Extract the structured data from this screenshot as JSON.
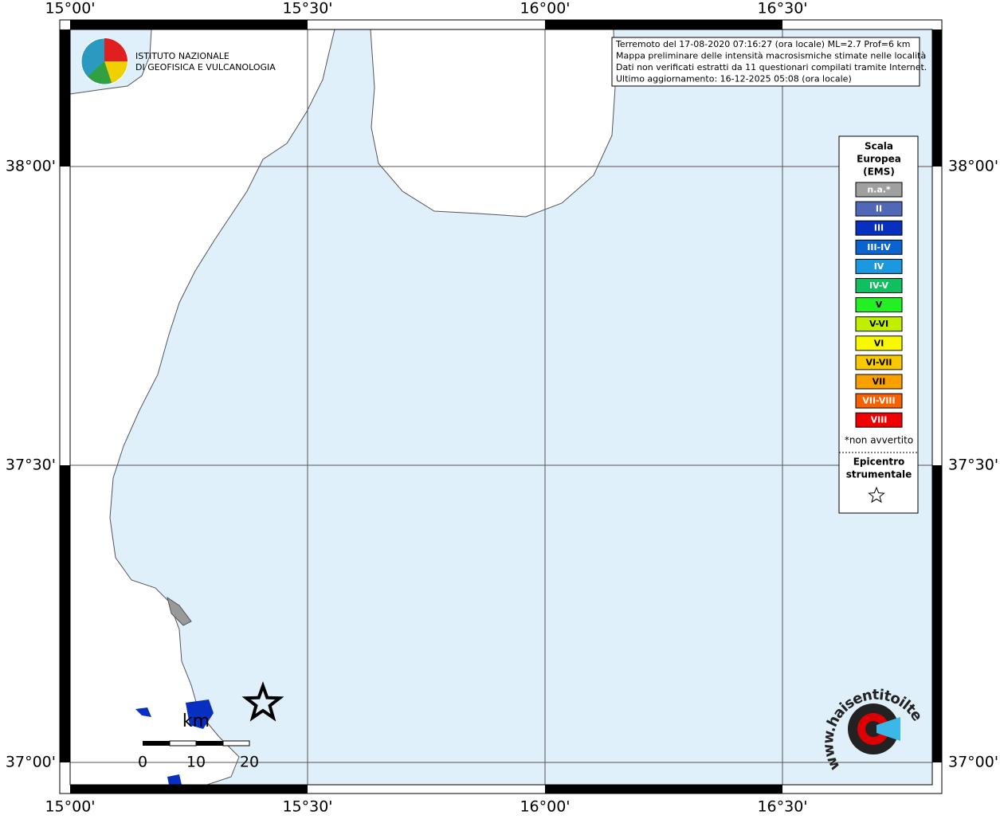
{
  "axis_labels": {
    "top": [
      "15°00'",
      "15°30'",
      "16°00'",
      "16°30'"
    ],
    "bottom": [
      "15°00'",
      "15°30'",
      "16°00'",
      "16°30'"
    ],
    "left": [
      "38°00'",
      "37°30'",
      "37°00'"
    ],
    "right": [
      "38°00'",
      "37°30'",
      "37°00'"
    ]
  },
  "logo": {
    "line1": "ISTITUTO NAZIONALE",
    "line2": "DI GEOFISICA E VULCANOLOGIA"
  },
  "info": {
    "lines": [
      "Terremoto del 17-08-2020 07:16:27 (ora locale) ML=2.7 Prof=6 km",
      "Mappa preliminare delle intensità macrosismiche stimate nelle località",
      "Dati non verificati estratti da 11 questionari compilati tramite Internet.",
      "Ultimo aggiornamento: 16-12-2025 05:08 (ora locale)"
    ]
  },
  "legend": {
    "title": [
      "Scala",
      "Europea",
      "(EMS)"
    ],
    "items": [
      {
        "label": "n.a.*",
        "color": "#a0a0a0"
      },
      {
        "label": "II",
        "color": "#5068b8"
      },
      {
        "label": "III",
        "color": "#0830c0"
      },
      {
        "label": "III-IV",
        "color": "#0a64d0"
      },
      {
        "label": "IV",
        "color": "#1a98e0"
      },
      {
        "label": "IV-V",
        "color": "#10c060"
      },
      {
        "label": "V",
        "color": "#22f022"
      },
      {
        "label": "V-VI",
        "color": "#c0f000"
      },
      {
        "label": "VI",
        "color": "#f8f800"
      },
      {
        "label": "VI-VII",
        "color": "#f8c800"
      },
      {
        "label": "VII",
        "color": "#f8a000"
      },
      {
        "label": "VII-VIII",
        "color": "#f86000"
      },
      {
        "label": "VIII",
        "color": "#f00000"
      }
    ],
    "note": "*non avvertito",
    "epicenter": [
      "Epicentro",
      "strumentale"
    ]
  },
  "scale_bar": {
    "unit": "km",
    "ticks": [
      "0",
      "10",
      "20"
    ]
  },
  "site_logo": "www.haisentitoilterremoto.it"
}
